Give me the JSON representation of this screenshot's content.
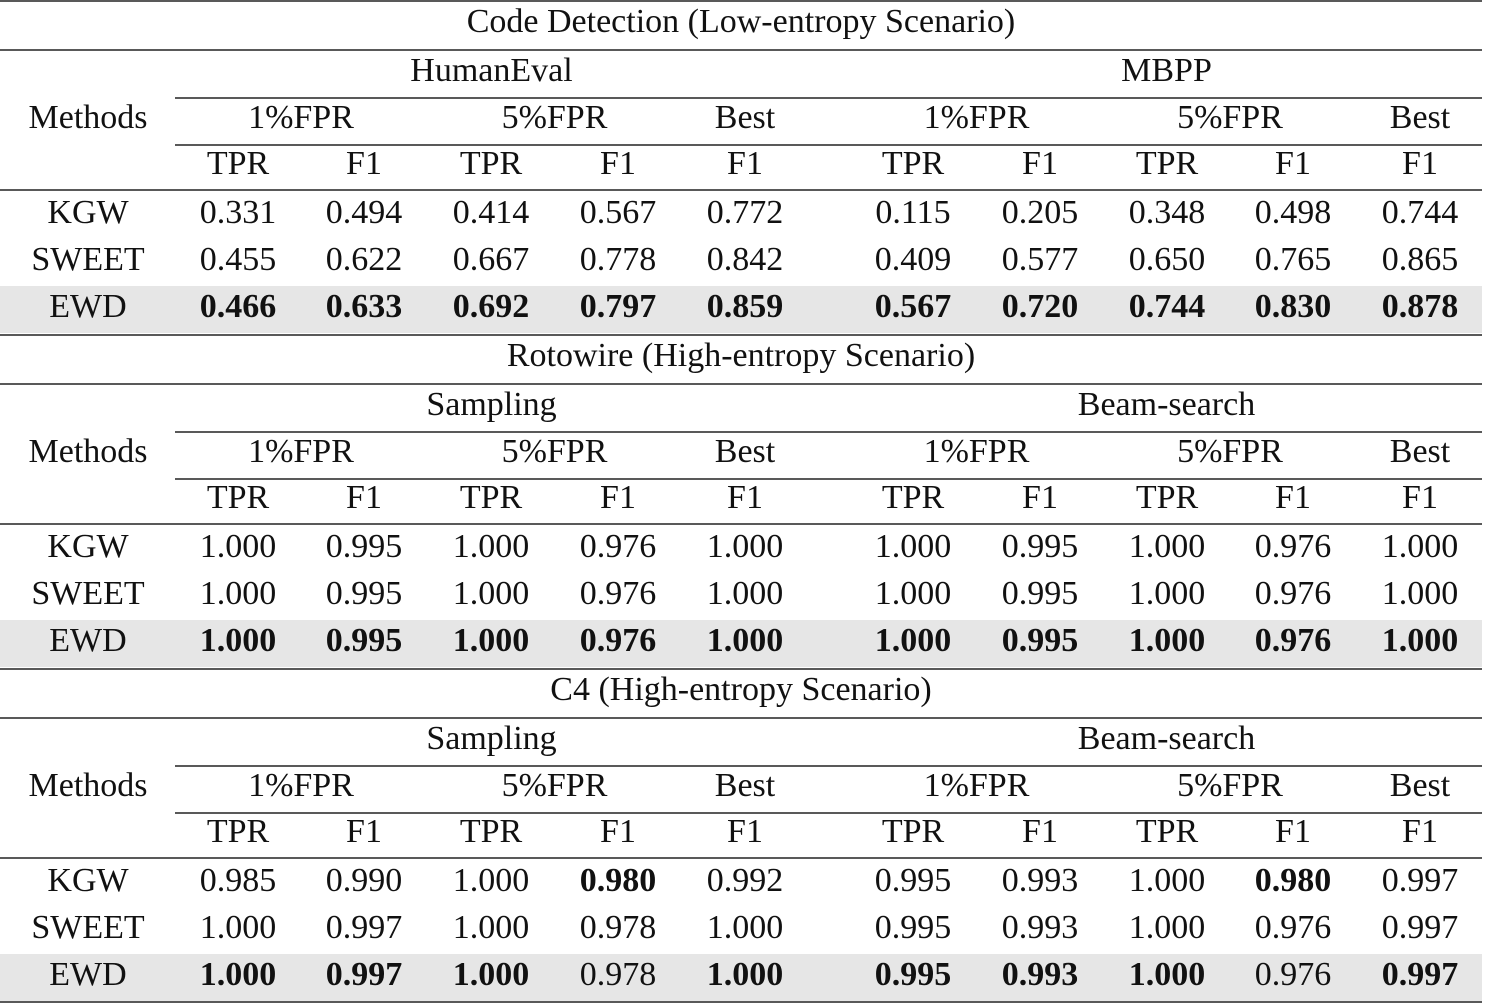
{
  "sections": [
    {
      "title": "Code Detection (Low-entropy Scenario)",
      "methods_header": "Methods",
      "groups": [
        {
          "name": "HumanEval",
          "subgroups": [
            {
              "name": "1%FPR",
              "metrics": [
                "TPR",
                "F1"
              ]
            },
            {
              "name": "5%FPR",
              "metrics": [
                "TPR",
                "F1"
              ]
            },
            {
              "name": "Best",
              "metrics": [
                "F1"
              ]
            }
          ]
        },
        {
          "name": "MBPP",
          "subgroups": [
            {
              "name": "1%FPR",
              "metrics": [
                "TPR",
                "F1"
              ]
            },
            {
              "name": "5%FPR",
              "metrics": [
                "TPR",
                "F1"
              ]
            },
            {
              "name": "Best",
              "metrics": [
                "F1"
              ]
            }
          ]
        }
      ],
      "rows": [
        {
          "method": "KGW",
          "values": [
            "0.331",
            "0.494",
            "0.414",
            "0.567",
            "0.772",
            "0.115",
            "0.205",
            "0.348",
            "0.498",
            "0.744"
          ],
          "bold": []
        },
        {
          "method": "SWEET",
          "values": [
            "0.455",
            "0.622",
            "0.667",
            "0.778",
            "0.842",
            "0.409",
            "0.577",
            "0.650",
            "0.765",
            "0.865"
          ],
          "bold": []
        },
        {
          "method": "EWD",
          "values": [
            "0.466",
            "0.633",
            "0.692",
            "0.797",
            "0.859",
            "0.567",
            "0.720",
            "0.744",
            "0.830",
            "0.878"
          ],
          "bold": [
            0,
            1,
            2,
            3,
            4,
            5,
            6,
            7,
            8,
            9
          ],
          "highlight": true
        }
      ]
    },
    {
      "title": "Rotowire (High-entropy Scenario)",
      "methods_header": "Methods",
      "groups": [
        {
          "name": "Sampling",
          "subgroups": [
            {
              "name": "1%FPR",
              "metrics": [
                "TPR",
                "F1"
              ]
            },
            {
              "name": "5%FPR",
              "metrics": [
                "TPR",
                "F1"
              ]
            },
            {
              "name": "Best",
              "metrics": [
                "F1"
              ]
            }
          ]
        },
        {
          "name": "Beam-search",
          "subgroups": [
            {
              "name": "1%FPR",
              "metrics": [
                "TPR",
                "F1"
              ]
            },
            {
              "name": "5%FPR",
              "metrics": [
                "TPR",
                "F1"
              ]
            },
            {
              "name": "Best",
              "metrics": [
                "F1"
              ]
            }
          ]
        }
      ],
      "rows": [
        {
          "method": "KGW",
          "values": [
            "1.000",
            "0.995",
            "1.000",
            "0.976",
            "1.000",
            "1.000",
            "0.995",
            "1.000",
            "0.976",
            "1.000"
          ],
          "bold": []
        },
        {
          "method": "SWEET",
          "values": [
            "1.000",
            "0.995",
            "1.000",
            "0.976",
            "1.000",
            "1.000",
            "0.995",
            "1.000",
            "0.976",
            "1.000"
          ],
          "bold": []
        },
        {
          "method": "EWD",
          "values": [
            "1.000",
            "0.995",
            "1.000",
            "0.976",
            "1.000",
            "1.000",
            "0.995",
            "1.000",
            "0.976",
            "1.000"
          ],
          "bold": [
            0,
            1,
            2,
            3,
            4,
            5,
            6,
            7,
            8,
            9
          ],
          "highlight": true
        }
      ]
    },
    {
      "title": "C4 (High-entropy Scenario)",
      "methods_header": "Methods",
      "groups": [
        {
          "name": "Sampling",
          "subgroups": [
            {
              "name": "1%FPR",
              "metrics": [
                "TPR",
                "F1"
              ]
            },
            {
              "name": "5%FPR",
              "metrics": [
                "TPR",
                "F1"
              ]
            },
            {
              "name": "Best",
              "metrics": [
                "F1"
              ]
            }
          ]
        },
        {
          "name": "Beam-search",
          "subgroups": [
            {
              "name": "1%FPR",
              "metrics": [
                "TPR",
                "F1"
              ]
            },
            {
              "name": "5%FPR",
              "metrics": [
                "TPR",
                "F1"
              ]
            },
            {
              "name": "Best",
              "metrics": [
                "F1"
              ]
            }
          ]
        }
      ],
      "rows": [
        {
          "method": "KGW",
          "values": [
            "0.985",
            "0.990",
            "1.000",
            "0.980",
            "0.992",
            "0.995",
            "0.993",
            "1.000",
            "0.980",
            "0.997"
          ],
          "bold": [
            3,
            8
          ]
        },
        {
          "method": "SWEET",
          "values": [
            "1.000",
            "0.997",
            "1.000",
            "0.978",
            "1.000",
            "0.995",
            "0.993",
            "1.000",
            "0.976",
            "0.997"
          ],
          "bold": []
        },
        {
          "method": "EWD",
          "values": [
            "1.000",
            "0.997",
            "1.000",
            "0.978",
            "1.000",
            "0.995",
            "0.993",
            "1.000",
            "0.976",
            "0.997"
          ],
          "bold": [
            0,
            1,
            2,
            4,
            5,
            6,
            7,
            9
          ],
          "highlight": true
        }
      ]
    }
  ]
}
